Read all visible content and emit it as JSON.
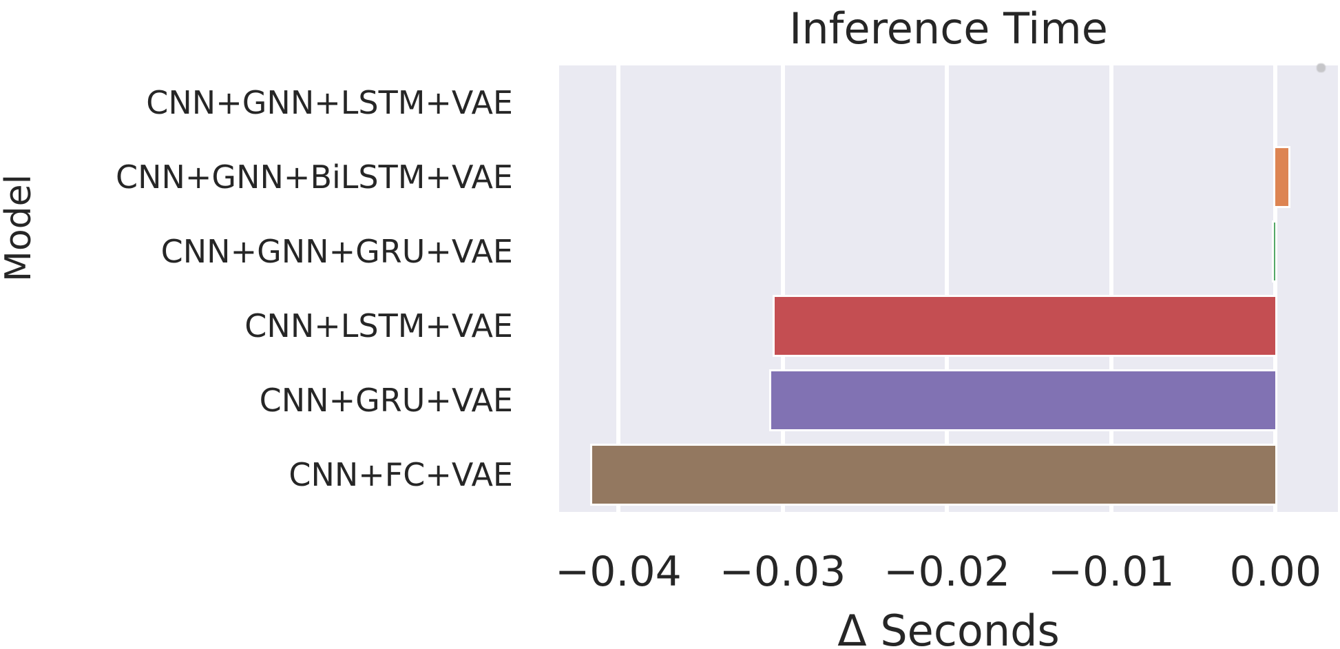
{
  "chart_data": {
    "type": "bar",
    "orientation": "horizontal",
    "title": "Inference Time",
    "xlabel": "Δ Seconds",
    "ylabel": "Model",
    "categories": [
      "CNN+GNN+LSTM+VAE",
      "CNN+GNN+BiLSTM+VAE",
      "CNN+GNN+GRU+VAE",
      "CNN+LSTM+VAE",
      "CNN+GRU+VAE",
      "CNN+FC+VAE"
    ],
    "values": [
      0.0,
      0.0008,
      -0.0001,
      -0.0305,
      -0.0307,
      -0.0416
    ],
    "bar_colors": [
      "#4c72b0",
      "#dd8452",
      "#55a868",
      "#c44e52",
      "#8172b3",
      "#937860"
    ],
    "xlim": [
      -0.0436,
      0.0038
    ],
    "xticks": [
      -0.04,
      -0.03,
      -0.02,
      -0.01,
      0.0
    ],
    "xtick_labels": [
      "−0.04",
      "−0.03",
      "−0.02",
      "−0.01",
      "0.00"
    ],
    "grid": true,
    "legend": "none",
    "plot_bg_color": "#eaeaf2",
    "gridline_color": "#ffffff",
    "text_color": "#262626",
    "stray_marker_color": "#c6c6c9"
  }
}
